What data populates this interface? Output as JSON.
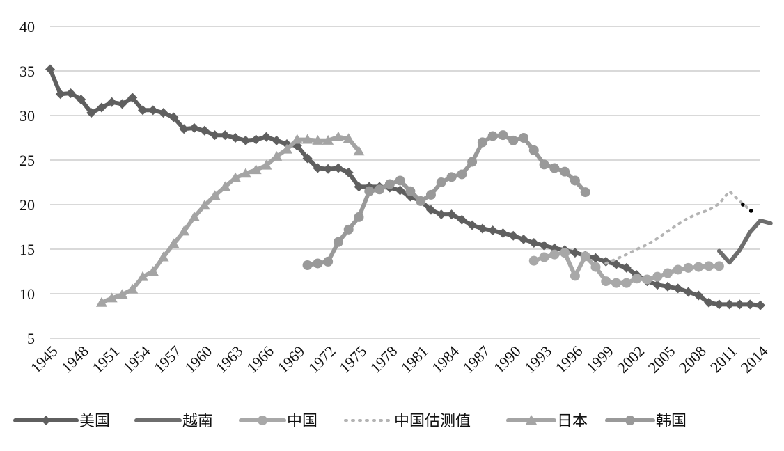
{
  "chart_data": {
    "type": "line",
    "title": "",
    "xlabel": "",
    "ylabel": "",
    "ylim": [
      5,
      40
    ],
    "yticks": [
      5,
      10,
      15,
      20,
      25,
      30,
      35,
      40
    ],
    "xlim": [
      1945,
      2014
    ],
    "xticks": [
      1945,
      1948,
      1951,
      1954,
      1957,
      1960,
      1963,
      1966,
      1969,
      1972,
      1975,
      1978,
      1981,
      1984,
      1987,
      1990,
      1993,
      1996,
      1999,
      2002,
      2005,
      2008,
      2011,
      2014
    ],
    "grid": true,
    "legend_position": "bottom",
    "series": [
      {
        "name": "美国",
        "color": "#5f5f5f",
        "marker": "diamond",
        "dash": "solid",
        "x": [
          1945,
          1946,
          1947,
          1948,
          1949,
          1950,
          1951,
          1952,
          1953,
          1954,
          1955,
          1956,
          1957,
          1958,
          1959,
          1960,
          1961,
          1962,
          1963,
          1964,
          1965,
          1966,
          1967,
          1968,
          1969,
          1970,
          1971,
          1972,
          1973,
          1974,
          1975,
          1976,
          1977,
          1978,
          1979,
          1980,
          1981,
          1982,
          1983,
          1984,
          1985,
          1986,
          1987,
          1988,
          1989,
          1990,
          1991,
          1992,
          1993,
          1994,
          1995,
          1996,
          1997,
          1998,
          1999,
          2000,
          2001,
          2002,
          2003,
          2004,
          2005,
          2006,
          2007,
          2008,
          2009,
          2010,
          2011,
          2012,
          2013,
          2014
        ],
        "y": [
          35.2,
          32.4,
          32.5,
          31.8,
          30.3,
          30.9,
          31.5,
          31.3,
          32.0,
          30.6,
          30.6,
          30.3,
          29.8,
          28.5,
          28.6,
          28.3,
          27.8,
          27.8,
          27.5,
          27.2,
          27.3,
          27.6,
          27.2,
          26.8,
          26.6,
          25.2,
          24.1,
          24.0,
          24.1,
          23.6,
          22.0,
          22.0,
          22.0,
          21.9,
          21.6,
          20.9,
          20.4,
          19.4,
          18.9,
          18.9,
          18.3,
          17.7,
          17.3,
          17.1,
          16.8,
          16.5,
          16.1,
          15.7,
          15.4,
          15.1,
          14.9,
          14.6,
          14.3,
          14.0,
          13.6,
          13.3,
          12.9,
          12.1,
          11.4,
          11.0,
          10.8,
          10.6,
          10.2,
          9.8,
          9.0,
          8.8,
          8.8,
          8.8,
          8.8,
          8.7
        ]
      },
      {
        "name": "越南",
        "color": "#6e6e6e",
        "marker": "none",
        "dash": "solid",
        "x": [
          2010,
          2011,
          2012,
          2013,
          2014,
          2015
        ],
        "y": [
          14.8,
          13.5,
          14.9,
          16.9,
          18.2,
          17.9
        ]
      },
      {
        "name": "中国",
        "color": "#a8a8a8",
        "marker": "circle",
        "dash": "solid",
        "x": [
          1992,
          1993,
          1994,
          1995,
          1996,
          1997,
          1998,
          1999,
          2000,
          2001,
          2002,
          2003,
          2004,
          2005,
          2006,
          2007,
          2008,
          2009,
          2010
        ],
        "y": [
          13.7,
          14.1,
          14.4,
          14.6,
          12.0,
          14.2,
          13.0,
          11.4,
          11.2,
          11.2,
          11.7,
          11.6,
          11.9,
          12.3,
          12.7,
          12.9,
          13.0,
          13.1,
          13.1
        ]
      },
      {
        "name": "中国估测值",
        "color": "#b4b4b4",
        "marker": "none",
        "dash": "dotted",
        "x": [
          1999,
          2000,
          2001,
          2002,
          2003,
          2004,
          2005,
          2006,
          2007,
          2008,
          2009,
          2010,
          2011,
          2012,
          2013
        ],
        "y": [
          13.4,
          13.9,
          14.4,
          15.0,
          15.5,
          16.2,
          17.0,
          17.8,
          18.5,
          19.0,
          19.4,
          20.1,
          21.5,
          20.4,
          19.4
        ]
      },
      {
        "name": "日本",
        "color": "#a4a4a4",
        "marker": "triangle",
        "dash": "solid",
        "x": [
          1950,
          1951,
          1952,
          1953,
          1954,
          1955,
          1956,
          1957,
          1958,
          1959,
          1960,
          1961,
          1962,
          1963,
          1964,
          1965,
          1966,
          1967,
          1968,
          1969,
          1970,
          1971,
          1972,
          1973,
          1974,
          1975
        ],
        "y": [
          9.0,
          9.5,
          9.9,
          10.5,
          11.9,
          12.5,
          14.1,
          15.6,
          17.0,
          18.6,
          19.9,
          21.0,
          22.0,
          23.0,
          23.5,
          23.9,
          24.4,
          25.4,
          26.2,
          27.3,
          27.3,
          27.2,
          27.2,
          27.6,
          27.4,
          26.0
        ]
      },
      {
        "name": "韩国",
        "color": "#999999",
        "marker": "circle",
        "dash": "solid",
        "x": [
          1970,
          1971,
          1972,
          1973,
          1974,
          1975,
          1976,
          1977,
          1978,
          1979,
          1980,
          1981,
          1982,
          1983,
          1984,
          1985,
          1986,
          1987,
          1988,
          1989,
          1990,
          1991,
          1992,
          1993,
          1994,
          1995,
          1996,
          1997
        ],
        "y": [
          13.2,
          13.4,
          13.6,
          15.8,
          17.2,
          18.6,
          21.5,
          21.7,
          22.3,
          22.7,
          21.5,
          20.4,
          21.1,
          22.5,
          23.1,
          23.4,
          24.8,
          27.0,
          27.7,
          27.8,
          27.2,
          27.5,
          26.1,
          24.5,
          24.1,
          23.7,
          22.7,
          21.4
        ]
      }
    ]
  }
}
